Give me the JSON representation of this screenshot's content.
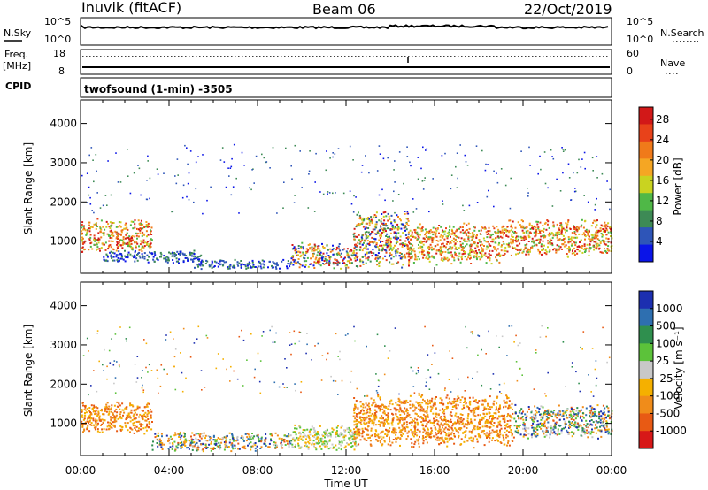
{
  "header": {
    "station": "Inuvik (fitACF)",
    "beam": "Beam 06",
    "date": "22/Oct/2019"
  },
  "status_panels": {
    "nsky_label": "N.Sky",
    "nsky_top": "10^5",
    "nsky_bottom": "10^0",
    "nsearch_top": "10^5",
    "nsearch_bottom": "10^0",
    "nsearch_label": "N.Search",
    "freq_label": "Freq.",
    "freq_unit": "[MHz]",
    "freq_top": "18",
    "freq_bottom": "8",
    "nave_top": "60",
    "nave_bottom": "0",
    "nave_label": "Nave",
    "cpid_label": "CPID",
    "cpid_value": "twofsound (1-min) -3505"
  },
  "colors": {
    "power": [
      "#0a14e8",
      "#2e55b8",
      "#3d8a55",
      "#4fb847",
      "#c9d320",
      "#f5a623",
      "#f07a1a",
      "#e8421a",
      "#d21818"
    ],
    "velocity": [
      "#1c2fb0",
      "#2e6fb0",
      "#2f8f4e",
      "#5cc23a",
      "#c8c8c8",
      "#f5b000",
      "#f08c1a",
      "#e85a14",
      "#d71818"
    ]
  },
  "chart_data": [
    {
      "type": "heatmap",
      "title": "",
      "xlabel": "",
      "ylabel": "Slant Range [km]",
      "x_ticks": [
        "00:00",
        "04:00",
        "08:00",
        "12:00",
        "16:00",
        "20:00",
        "00:00"
      ],
      "x_range_hours": [
        0,
        24
      ],
      "y_ticks": [
        1000,
        2000,
        3000,
        4000
      ],
      "ylim": [
        180,
        4600
      ],
      "colorbar": {
        "label": "Power [dB]",
        "ticks": [
          "4",
          "8",
          "12",
          "16",
          "20",
          "24",
          "28"
        ],
        "range": [
          0,
          30
        ]
      },
      "features": [
        {
          "start_hour": 0.0,
          "end_hour": 3.2,
          "range_km": [
            700,
            1600
          ],
          "level": "high"
        },
        {
          "start_hour": 1.0,
          "end_hour": 5.5,
          "range_km": [
            450,
            800
          ],
          "level": "low"
        },
        {
          "start_hour": 5.0,
          "end_hour": 9.5,
          "range_km": [
            300,
            550
          ],
          "level": "low"
        },
        {
          "start_hour": 9.5,
          "end_hour": 12.5,
          "range_km": [
            300,
            1000
          ],
          "level": "mixed"
        },
        {
          "start_hour": 12.3,
          "end_hour": 14.8,
          "range_km": [
            300,
            1800
          ],
          "level": "mixed"
        },
        {
          "start_hour": 14.8,
          "end_hour": 19.0,
          "range_km": [
            400,
            1500
          ],
          "level": "high"
        },
        {
          "start_hour": 19.0,
          "end_hour": 24.0,
          "range_km": [
            600,
            1600
          ],
          "level": "high"
        }
      ]
    },
    {
      "type": "heatmap",
      "title": "",
      "xlabel": "Time UT",
      "ylabel": "Slant Range [km]",
      "x_ticks": [
        "00:00",
        "04:00",
        "08:00",
        "12:00",
        "16:00",
        "20:00",
        "00:00"
      ],
      "x_range_hours": [
        0,
        24
      ],
      "y_ticks": [
        1000,
        2000,
        3000,
        4000
      ],
      "ylim": [
        180,
        4600
      ],
      "colorbar": {
        "label": "Velocity [m s⁻¹]",
        "ticks": [
          "1000",
          "500",
          "100",
          "25",
          "-25",
          "-100",
          "-500",
          "-1000"
        ],
        "range": [
          -1000,
          1000
        ]
      },
      "features": [
        {
          "start_hour": 0.0,
          "end_hour": 3.2,
          "range_km": [
            700,
            1600
          ],
          "velocity": "negative"
        },
        {
          "start_hour": 3.2,
          "end_hour": 9.5,
          "range_km": [
            300,
            800
          ],
          "velocity": "mixed"
        },
        {
          "start_hour": 9.5,
          "end_hour": 12.5,
          "range_km": [
            300,
            1000
          ],
          "velocity": "near-zero"
        },
        {
          "start_hour": 12.3,
          "end_hour": 19.5,
          "range_km": [
            400,
            1800
          ],
          "velocity": "negative"
        },
        {
          "start_hour": 19.5,
          "end_hour": 24.0,
          "range_km": [
            600,
            1500
          ],
          "velocity": "mixed"
        }
      ]
    }
  ]
}
